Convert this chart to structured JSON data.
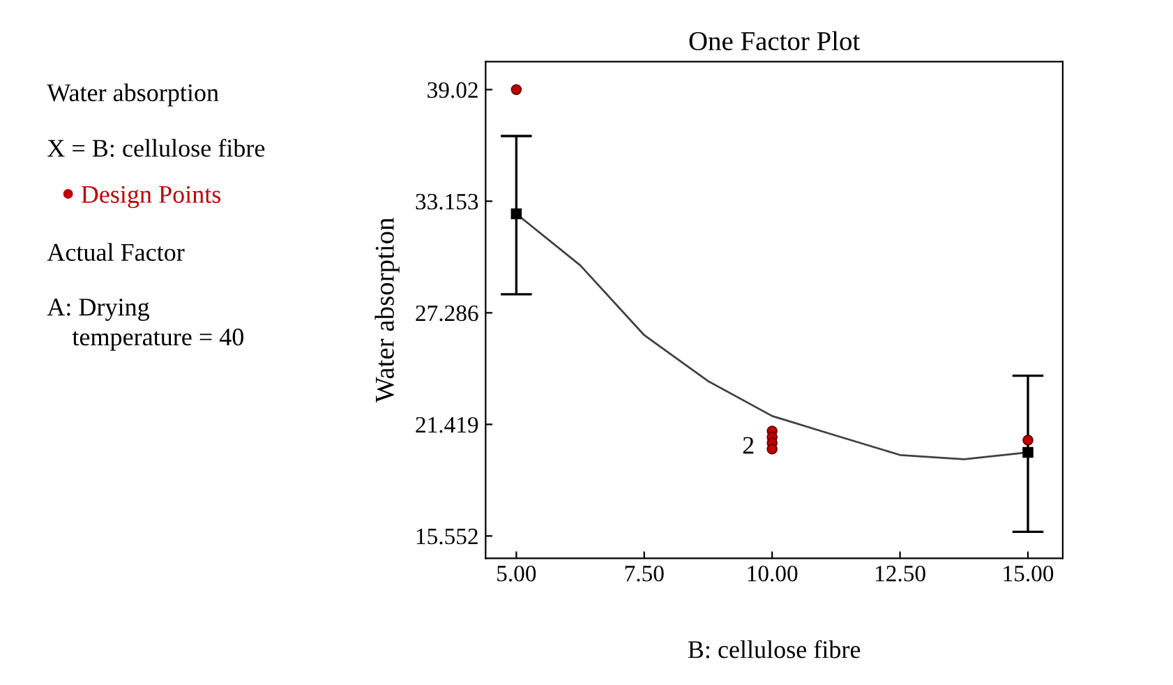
{
  "chart_data": {
    "type": "line",
    "title": "One Factor Plot",
    "xlabel": "B: cellulose fibre",
    "ylabel": "Water absorption",
    "xlim": [
      4.4,
      15.68
    ],
    "ylim": [
      14.38,
      40.49
    ],
    "xticks": [
      {
        "value": 5,
        "label": "5.00"
      },
      {
        "value": 7.5,
        "label": "7.50"
      },
      {
        "value": 10,
        "label": "10.00"
      },
      {
        "value": 12.5,
        "label": "12.50"
      },
      {
        "value": 15,
        "label": "15.00"
      }
    ],
    "yticks": [
      15.552,
      21.419,
      27.286,
      33.153,
      39.02
    ],
    "grid": false,
    "legend": "left",
    "series": [
      {
        "color": "#404040",
        "x": [
          5,
          6.25,
          7.5,
          8.75,
          10,
          11.25,
          12.5,
          13.75,
          15
        ],
        "values": [
          32.49,
          29.78,
          26.11,
          23.69,
          21.86,
          20.83,
          19.81,
          19.59,
          19.95
        ]
      },
      {
        "type": "scatter",
        "marker": "square",
        "color": "#000000",
        "x": [
          5,
          15
        ],
        "values": [
          32.49,
          19.95
        ],
        "errors": [
          [
            28.26,
            36.58
          ],
          [
            15.77,
            23.98
          ]
        ]
      },
      {
        "type": "scatter",
        "marker": "circle",
        "name": "Design Points",
        "color": "#c00000",
        "x": [
          5,
          10,
          10,
          10,
          10,
          15
        ],
        "values": [
          39.02,
          21.07,
          20.75,
          20.44,
          20.12,
          20.59
        ]
      }
    ],
    "annotations": [
      "Water absorption",
      "X = B: cellulose fibre",
      "Actual Factor",
      "A: Drying\n    temperature = 40",
      {
        "text": "2",
        "x": 10,
        "y": 20.2
      }
    ]
  }
}
